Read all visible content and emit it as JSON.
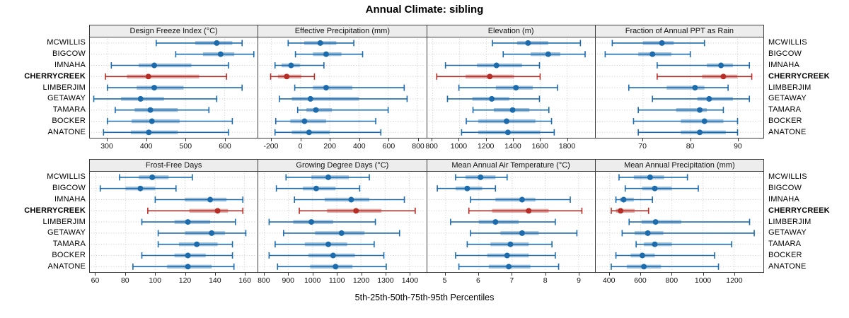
{
  "title": "Annual Climate: sibling",
  "caption": "5th-25th-50th-75th-95th Percentiles",
  "sites": [
    "MCWILLIS",
    "BIGCOW",
    "IMNAHA",
    "CHERRYCREEK",
    "LIMBERJIM",
    "GETAWAY",
    "TAMARA",
    "BOCKER",
    "ANATONE"
  ],
  "highlight_site": "CHERRYCREEK",
  "percentile_levels": [
    "5th",
    "25th",
    "50th",
    "75th",
    "95th"
  ],
  "colors": {
    "series": "#1c6bac",
    "series_band": "rgba(28,107,172,0.40)",
    "highlight": "#b42d26",
    "highlight_band": "rgba(180,45,38,0.40)",
    "grid": "#c9c9c9",
    "strip_bg": "#ededed",
    "border": "#3c3c3c"
  },
  "chart_data": [
    {
      "type": "dotplot-percentiles",
      "row": 1,
      "title": "Design Freeze Index (°C)",
      "ticks": [
        300,
        400,
        500,
        600
      ],
      "domain": [
        255,
        685
      ],
      "series": [
        {
          "name": "MCWILLIS",
          "values": [
            425,
            525,
            580,
            620,
            645
          ]
        },
        {
          "name": "BIGCOW",
          "values": [
            475,
            545,
            590,
            625,
            675
          ]
        },
        {
          "name": "IMNAHA",
          "values": [
            310,
            380,
            420,
            515,
            610
          ]
        },
        {
          "name": "CHERRYCREEK",
          "values": [
            295,
            350,
            405,
            535,
            605
          ]
        },
        {
          "name": "LIMBERJIM",
          "values": [
            300,
            375,
            420,
            495,
            645
          ]
        },
        {
          "name": "GETAWAY",
          "values": [
            265,
            335,
            385,
            445,
            580
          ]
        },
        {
          "name": "TAMARA",
          "values": [
            320,
            370,
            410,
            480,
            560
          ]
        },
        {
          "name": "BOCKER",
          "values": [
            300,
            362,
            414,
            485,
            620
          ]
        },
        {
          "name": "ANATONE",
          "values": [
            290,
            360,
            406,
            480,
            610
          ]
        }
      ]
    },
    {
      "type": "dotplot-percentiles",
      "row": 1,
      "title": "Effective Precipitation (mm)",
      "ticks": [
        -200,
        0,
        200,
        400,
        600,
        800
      ],
      "domain": [
        -290,
        860
      ],
      "series": [
        {
          "name": "MCWILLIS",
          "values": [
            -85,
            25,
            135,
            245,
            365
          ]
        },
        {
          "name": "BIGCOW",
          "values": [
            -35,
            85,
            175,
            280,
            425
          ]
        },
        {
          "name": "IMNAHA",
          "values": [
            -175,
            -130,
            -65,
            -5,
            160
          ]
        },
        {
          "name": "CHERRYCREEK",
          "values": [
            -205,
            -155,
            -95,
            5,
            95
          ]
        },
        {
          "name": "LIMBERJIM",
          "values": [
            -40,
            85,
            175,
            355,
            710
          ]
        },
        {
          "name": "GETAWAY",
          "values": [
            -145,
            -60,
            68,
            400,
            730
          ]
        },
        {
          "name": "TAMARA",
          "values": [
            -20,
            40,
            105,
            215,
            600
          ]
        },
        {
          "name": "BOCKER",
          "values": [
            -170,
            -70,
            27,
            175,
            515
          ]
        },
        {
          "name": "ANATONE",
          "values": [
            -175,
            -60,
            58,
            200,
            550
          ]
        }
      ]
    },
    {
      "type": "dotplot-percentiles",
      "row": 1,
      "title": "Elevation (m)",
      "ticks": [
        800,
        1000,
        1200,
        1400,
        1600,
        1800
      ],
      "domain": [
        760,
        2010
      ],
      "series": [
        {
          "name": "MCWILLIS",
          "values": [
            1245,
            1430,
            1510,
            1660,
            1900
          ]
        },
        {
          "name": "BIGCOW",
          "values": [
            1325,
            1530,
            1660,
            1750,
            1935
          ]
        },
        {
          "name": "IMNAHA",
          "values": [
            895,
            1130,
            1275,
            1465,
            1595
          ]
        },
        {
          "name": "CHERRYCREEK",
          "values": [
            830,
            1045,
            1225,
            1405,
            1600
          ]
        },
        {
          "name": "LIMBERJIM",
          "values": [
            995,
            1270,
            1420,
            1545,
            1730
          ]
        },
        {
          "name": "GETAWAY",
          "values": [
            910,
            1095,
            1240,
            1370,
            1595
          ]
        },
        {
          "name": "TAMARA",
          "values": [
            1100,
            1255,
            1395,
            1520,
            1665
          ]
        },
        {
          "name": "BOCKER",
          "values": [
            1050,
            1140,
            1350,
            1565,
            1685
          ]
        },
        {
          "name": "ANATONE",
          "values": [
            1015,
            1140,
            1360,
            1600,
            1705
          ]
        }
      ]
    },
    {
      "type": "dotplot-percentiles",
      "row": 1,
      "title": "Fraction of Annual PPT as Rain",
      "ticks": [
        70,
        80,
        90
      ],
      "domain": [
        60,
        95.5
      ],
      "series": [
        {
          "name": "MCWILLIS",
          "values": [
            63.5,
            70,
            74,
            76.5,
            83
          ]
        },
        {
          "name": "BIGCOW",
          "values": [
            62,
            69,
            72,
            76,
            80
          ]
        },
        {
          "name": "IMNAHA",
          "values": [
            73,
            83.5,
            86.5,
            89,
            92.5
          ]
        },
        {
          "name": "CHERRYCREEK",
          "values": [
            73,
            82.5,
            87,
            90,
            93
          ]
        },
        {
          "name": "LIMBERJIM",
          "values": [
            67,
            75,
            81,
            83,
            88
          ]
        },
        {
          "name": "GETAWAY",
          "values": [
            72,
            81.5,
            84,
            89,
            92.5
          ]
        },
        {
          "name": "TAMARA",
          "values": [
            69,
            77,
            82,
            83.5,
            87
          ]
        },
        {
          "name": "BOCKER",
          "values": [
            68,
            78,
            83,
            87,
            90
          ]
        },
        {
          "name": "ANATONE",
          "values": [
            69,
            78,
            82,
            87.5,
            90
          ]
        }
      ]
    },
    {
      "type": "dotplot-percentiles",
      "row": 2,
      "title": "Frost-Free Days",
      "ticks": [
        60,
        80,
        100,
        120,
        140,
        160
      ],
      "domain": [
        56,
        169
      ],
      "series": [
        {
          "name": "MCWILLIS",
          "values": [
            76,
            89,
            98,
            109,
            125
          ]
        },
        {
          "name": "BIGCOW",
          "values": [
            63,
            80,
            90,
            100,
            114
          ]
        },
        {
          "name": "IMNAHA",
          "values": [
            100,
            120,
            137,
            148,
            159
          ]
        },
        {
          "name": "CHERRYCREEK",
          "values": [
            95,
            123,
            142,
            149,
            159
          ]
        },
        {
          "name": "LIMBERJIM",
          "values": [
            91,
            113,
            122,
            137,
            154
          ]
        },
        {
          "name": "GETAWAY",
          "values": [
            102,
            120,
            138,
            147,
            161
          ]
        },
        {
          "name": "TAMARA",
          "values": [
            102,
            116,
            128,
            142,
            152
          ]
        },
        {
          "name": "BOCKER",
          "values": [
            91,
            113,
            122,
            134,
            152
          ]
        },
        {
          "name": "ANATONE",
          "values": [
            85,
            108,
            122,
            138,
            153
          ]
        }
      ]
    },
    {
      "type": "dotplot-percentiles",
      "row": 2,
      "title": "Growing Degree Days (°C)",
      "ticks": [
        800,
        900,
        1000,
        1100,
        1200,
        1300,
        1400
      ],
      "domain": [
        775,
        1470
      ],
      "series": [
        {
          "name": "MCWILLIS",
          "values": [
            890,
            995,
            1065,
            1150,
            1235
          ]
        },
        {
          "name": "BIGCOW",
          "values": [
            850,
            960,
            1015,
            1095,
            1195
          ]
        },
        {
          "name": "IMNAHA",
          "values": [
            925,
            1050,
            1160,
            1235,
            1380
          ]
        },
        {
          "name": "CHERRYCREEK",
          "values": [
            945,
            1060,
            1180,
            1285,
            1425
          ]
        },
        {
          "name": "LIMBERJIM",
          "values": [
            820,
            920,
            995,
            1085,
            1260
          ]
        },
        {
          "name": "GETAWAY",
          "values": [
            880,
            1010,
            1120,
            1215,
            1360
          ]
        },
        {
          "name": "TAMARA",
          "values": [
            845,
            968,
            1065,
            1143,
            1255
          ]
        },
        {
          "name": "BOCKER",
          "values": [
            820,
            983,
            1085,
            1175,
            1295
          ]
        },
        {
          "name": "ANATONE",
          "values": [
            855,
            990,
            1095,
            1165,
            1305
          ]
        }
      ]
    },
    {
      "type": "dotplot-percentiles",
      "row": 2,
      "title": "Mean Annual Air Temperature (°C)",
      "ticks": [
        5,
        6,
        7,
        8,
        9
      ],
      "domain": [
        4.45,
        9.5
      ],
      "series": [
        {
          "name": "MCWILLIS",
          "values": [
            5.3,
            5.6,
            6.05,
            6.5,
            6.85
          ]
        },
        {
          "name": "BIGCOW",
          "values": [
            4.75,
            5.3,
            5.65,
            6.1,
            6.5
          ]
        },
        {
          "name": "IMNAHA",
          "values": [
            5.75,
            6.5,
            7.3,
            7.7,
            8.75
          ]
        },
        {
          "name": "CHERRYCREEK",
          "values": [
            5.7,
            6.4,
            7.5,
            8.1,
            9.1
          ]
        },
        {
          "name": "LIMBERJIM",
          "values": [
            5.15,
            6.0,
            6.5,
            7.2,
            8.3
          ]
        },
        {
          "name": "GETAWAY",
          "values": [
            5.75,
            6.65,
            7.3,
            7.8,
            8.95
          ]
        },
        {
          "name": "TAMARA",
          "values": [
            5.65,
            6.35,
            6.95,
            7.5,
            8.2
          ]
        },
        {
          "name": "BOCKER",
          "values": [
            5.3,
            6.25,
            6.85,
            7.5,
            8.3
          ]
        },
        {
          "name": "ANATONE",
          "values": [
            5.4,
            6.3,
            6.9,
            7.55,
            8.4
          ]
        }
      ]
    },
    {
      "type": "dotplot-percentiles",
      "row": 2,
      "title": "Mean Annual Precipitation (mm)",
      "ticks": [
        400,
        600,
        800,
        1000,
        1200
      ],
      "domain": [
        310,
        1390
      ],
      "series": [
        {
          "name": "MCWILLIS",
          "values": [
            460,
            555,
            660,
            750,
            900
          ]
        },
        {
          "name": "BIGCOW",
          "values": [
            500,
            610,
            690,
            800,
            970
          ]
        },
        {
          "name": "IMNAHA",
          "values": [
            440,
            465,
            490,
            555,
            675
          ]
        },
        {
          "name": "CHERRYCREEK",
          "values": [
            410,
            440,
            470,
            560,
            650
          ]
        },
        {
          "name": "LIMBERJIM",
          "values": [
            525,
            605,
            695,
            860,
            1300
          ]
        },
        {
          "name": "GETAWAY",
          "values": [
            480,
            560,
            645,
            745,
            1330
          ]
        },
        {
          "name": "TAMARA",
          "values": [
            570,
            620,
            690,
            800,
            1185
          ]
        },
        {
          "name": "BOCKER",
          "values": [
            440,
            535,
            610,
            690,
            1075
          ]
        },
        {
          "name": "ANATONE",
          "values": [
            410,
            510,
            620,
            730,
            1100
          ]
        }
      ]
    }
  ]
}
